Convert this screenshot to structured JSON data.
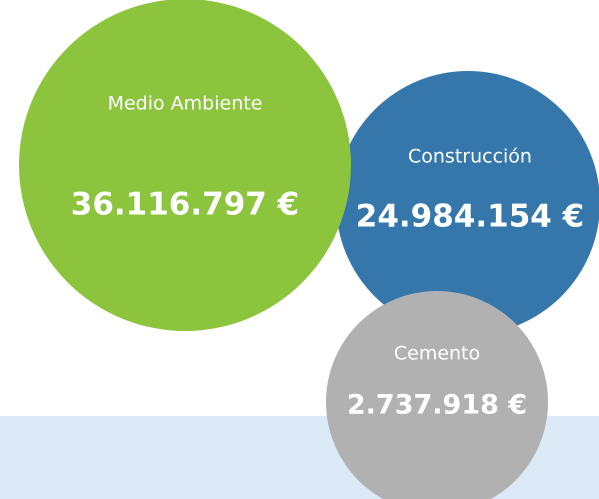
{
  "bubbles": [
    {
      "label": "Medio Ambiente",
      "amount": "36.116.797 €"
    },
    {
      "label": "Construcción",
      "amount": "24.984.154 €"
    },
    {
      "label": "Cemento",
      "amount": "2.737.918 €"
    }
  ]
}
